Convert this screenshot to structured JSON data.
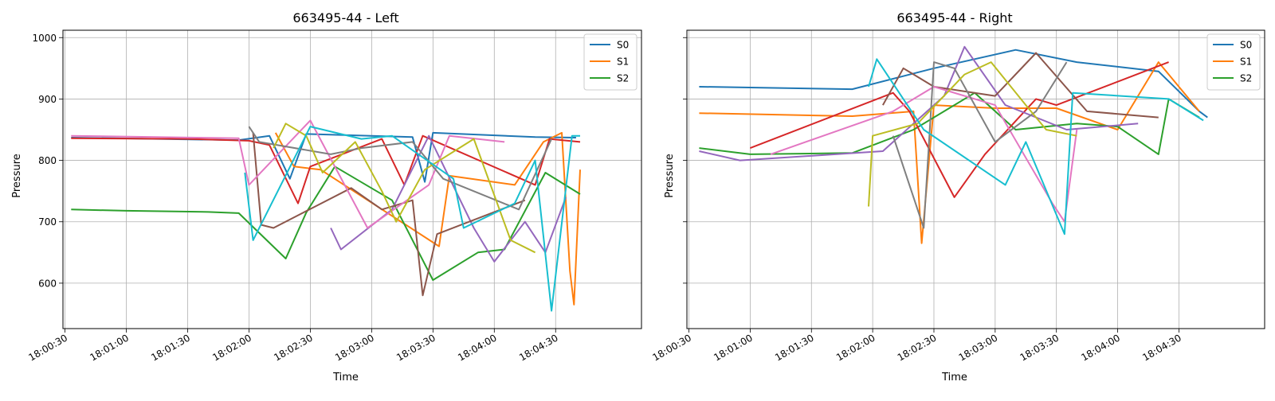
{
  "chart_data": [
    {
      "type": "line",
      "title": "663495-44 - Left",
      "xlabel": "Time",
      "ylabel": "Pressure",
      "x_range": [
        "18:00:29",
        "18:05:12"
      ],
      "ylim": [
        526,
        1012
      ],
      "x_ticks": [
        "18:00:30",
        "18:01:00",
        "18:01:30",
        "18:02:00",
        "18:02:30",
        "18:03:00",
        "18:03:30",
        "18:04:00",
        "18:04:30"
      ],
      "y_ticks": [
        600,
        700,
        800,
        900,
        1000
      ],
      "grid": true,
      "legend_position": "top-right",
      "legend": [
        {
          "label": "S0",
          "color": "#1f77b4"
        },
        {
          "label": "S1",
          "color": "#ff7f0e"
        },
        {
          "label": "S2",
          "color": "#2ca02c"
        }
      ],
      "series": [
        {
          "color": "#1f77b4",
          "points": [
            [
              "18:00:33",
              837
            ],
            [
              "18:01:55",
              833
            ],
            [
              "18:02:10",
              840
            ],
            [
              "18:02:20",
              770
            ],
            [
              "18:02:28",
              843
            ],
            [
              "18:03:20",
              838
            ],
            [
              "18:03:26",
              765
            ],
            [
              "18:03:30",
              845
            ],
            [
              "18:04:20",
              838
            ],
            [
              "18:04:40",
              837
            ]
          ]
        },
        {
          "color": "#ff7f0e",
          "points": [
            [
              "18:02:13",
              845
            ],
            [
              "18:02:22",
              790
            ],
            [
              "18:02:35",
              785
            ],
            [
              "18:03:33",
              660
            ],
            [
              "18:03:38",
              775
            ],
            [
              "18:04:10",
              760
            ],
            [
              "18:04:24",
              830
            ],
            [
              "18:04:33",
              845
            ],
            [
              "18:04:37",
              620
            ],
            [
              "18:04:39",
              565
            ],
            [
              "18:04:42",
              785
            ]
          ]
        },
        {
          "color": "#2ca02c",
          "points": [
            [
              "18:00:33",
              720
            ],
            [
              "18:01:00",
              718
            ],
            [
              "18:01:40",
              716
            ],
            [
              "18:01:55",
              714
            ],
            [
              "18:02:18",
              640
            ],
            [
              "18:02:28",
              715
            ],
            [
              "18:02:42",
              790
            ],
            [
              "18:03:10",
              735
            ],
            [
              "18:03:30",
              605
            ],
            [
              "18:03:52",
              650
            ],
            [
              "18:04:05",
              655
            ],
            [
              "18:04:25",
              780
            ],
            [
              "18:04:42",
              745
            ]
          ]
        },
        {
          "color": "#d62728",
          "points": [
            [
              "18:00:33",
              836
            ],
            [
              "18:01:30",
              835
            ],
            [
              "18:02:00",
              832
            ],
            [
              "18:02:10",
              825
            ],
            [
              "18:02:24",
              730
            ],
            [
              "18:02:30",
              790
            ],
            [
              "18:03:05",
              835
            ],
            [
              "18:03:16",
              760
            ],
            [
              "18:03:25",
              840
            ],
            [
              "18:04:20",
              760
            ],
            [
              "18:04:27",
              835
            ],
            [
              "18:04:42",
              830
            ]
          ]
        },
        {
          "color": "#9467bd",
          "points": [
            [
              "18:02:40",
              690
            ],
            [
              "18:02:45",
              655
            ],
            [
              "18:03:10",
              720
            ],
            [
              "18:03:28",
              840
            ],
            [
              "18:03:50",
              690
            ],
            [
              "18:04:00",
              635
            ],
            [
              "18:04:15",
              700
            ],
            [
              "18:04:25",
              650
            ],
            [
              "18:04:35",
              740
            ]
          ]
        },
        {
          "color": "#8c564b",
          "points": [
            [
              "18:02:02",
              845
            ],
            [
              "18:02:06",
              695
            ],
            [
              "18:02:12",
              690
            ],
            [
              "18:02:50",
              755
            ],
            [
              "18:03:05",
              720
            ],
            [
              "18:03:20",
              735
            ],
            [
              "18:03:25",
              580
            ],
            [
              "18:03:32",
              680
            ],
            [
              "18:04:15",
              735
            ]
          ]
        },
        {
          "color": "#e377c2",
          "points": [
            [
              "18:00:33",
              840
            ],
            [
              "18:01:55",
              836
            ],
            [
              "18:02:00",
              760
            ],
            [
              "18:02:30",
              865
            ],
            [
              "18:02:58",
              690
            ],
            [
              "18:03:28",
              760
            ],
            [
              "18:03:38",
              840
            ],
            [
              "18:04:05",
              830
            ]
          ]
        },
        {
          "color": "#7f7f7f",
          "points": [
            [
              "18:02:00",
              855
            ],
            [
              "18:02:05",
              830
            ],
            [
              "18:02:40",
              810
            ],
            [
              "18:02:55",
              820
            ],
            [
              "18:03:20",
              830
            ],
            [
              "18:03:35",
              770
            ],
            [
              "18:04:12",
              720
            ],
            [
              "18:04:28",
              835
            ]
          ]
        },
        {
          "color": "#bcbd22",
          "points": [
            [
              "18:02:12",
              820
            ],
            [
              "18:02:18",
              860
            ],
            [
              "18:02:28",
              840
            ],
            [
              "18:02:36",
              780
            ],
            [
              "18:02:52",
              830
            ],
            [
              "18:03:05",
              750
            ],
            [
              "18:03:12",
              700
            ],
            [
              "18:03:26",
              785
            ],
            [
              "18:03:50",
              835
            ],
            [
              "18:04:08",
              670
            ],
            [
              "18:04:20",
              650
            ]
          ]
        },
        {
          "color": "#17becf",
          "points": [
            [
              "18:01:58",
              780
            ],
            [
              "18:02:02",
              670
            ],
            [
              "18:02:30",
              855
            ],
            [
              "18:02:55",
              835
            ],
            [
              "18:03:10",
              840
            ],
            [
              "18:03:40",
              770
            ],
            [
              "18:03:45",
              690
            ],
            [
              "18:04:10",
              730
            ],
            [
              "18:04:20",
              800
            ],
            [
              "18:04:28",
              555
            ],
            [
              "18:04:38",
              840
            ],
            [
              "18:04:42",
              840
            ]
          ]
        }
      ]
    },
    {
      "type": "line",
      "title": "663495-44 - Right",
      "xlabel": "Time",
      "ylabel": "Pressure",
      "x_range": [
        "18:00:29",
        "18:05:12"
      ],
      "ylim": [
        526,
        1012
      ],
      "x_ticks": [
        "18:00:30",
        "18:01:00",
        "18:01:30",
        "18:02:00",
        "18:02:30",
        "18:03:00",
        "18:03:30",
        "18:04:00",
        "18:04:30"
      ],
      "y_ticks": [
        600,
        700,
        800,
        900,
        1000
      ],
      "grid": true,
      "legend_position": "top-right",
      "legend": [
        {
          "label": "S0",
          "color": "#1f77b4"
        },
        {
          "label": "S1",
          "color": "#ff7f0e"
        },
        {
          "label": "S2",
          "color": "#2ca02c"
        }
      ],
      "series": [
        {
          "color": "#1f77b4",
          "points": [
            [
              "18:00:35",
              920
            ],
            [
              "18:01:50",
              916
            ],
            [
              "18:02:30",
              950
            ],
            [
              "18:03:10",
              980
            ],
            [
              "18:03:40",
              960
            ],
            [
              "18:04:20",
              945
            ],
            [
              "18:04:40",
              880
            ],
            [
              "18:04:44",
              870
            ]
          ]
        },
        {
          "color": "#ff7f0e",
          "points": [
            [
              "18:00:35",
              877
            ],
            [
              "18:01:50",
              872
            ],
            [
              "18:02:20",
              880
            ],
            [
              "18:02:24",
              665
            ],
            [
              "18:02:30",
              890
            ],
            [
              "18:03:00",
              885
            ],
            [
              "18:03:30",
              885
            ],
            [
              "18:04:00",
              850
            ],
            [
              "18:04:20",
              960
            ],
            [
              "18:04:40",
              880
            ]
          ]
        },
        {
          "color": "#2ca02c",
          "points": [
            [
              "18:00:35",
              820
            ],
            [
              "18:01:00",
              810
            ],
            [
              "18:01:50",
              812
            ],
            [
              "18:02:20",
              850
            ],
            [
              "18:02:50",
              910
            ],
            [
              "18:03:10",
              850
            ],
            [
              "18:03:40",
              860
            ],
            [
              "18:04:00",
              855
            ],
            [
              "18:04:20",
              810
            ],
            [
              "18:04:25",
              900
            ],
            [
              "18:04:40",
              870
            ]
          ]
        },
        {
          "color": "#d62728",
          "points": [
            [
              "18:01:00",
              820
            ],
            [
              "18:02:10",
              910
            ],
            [
              "18:02:18",
              880
            ],
            [
              "18:02:40",
              740
            ],
            [
              "18:02:55",
              810
            ],
            [
              "18:03:20",
              900
            ],
            [
              "18:03:30",
              890
            ],
            [
              "18:04:25",
              960
            ]
          ]
        },
        {
          "color": "#9467bd",
          "points": [
            [
              "18:00:35",
              815
            ],
            [
              "18:00:55",
              800
            ],
            [
              "18:02:05",
              815
            ],
            [
              "18:02:35",
              905
            ],
            [
              "18:02:45",
              985
            ],
            [
              "18:03:05",
              890
            ],
            [
              "18:03:35",
              850
            ],
            [
              "18:04:10",
              860
            ]
          ]
        },
        {
          "color": "#8c564b",
          "points": [
            [
              "18:02:05",
              890
            ],
            [
              "18:02:15",
              950
            ],
            [
              "18:02:30",
              920
            ],
            [
              "18:03:00",
              905
            ],
            [
              "18:03:20",
              975
            ],
            [
              "18:03:45",
              880
            ],
            [
              "18:04:20",
              870
            ]
          ]
        },
        {
          "color": "#e377c2",
          "points": [
            [
              "18:01:10",
              810
            ],
            [
              "18:02:10",
              880
            ],
            [
              "18:02:30",
              920
            ],
            [
              "18:03:00",
              890
            ],
            [
              "18:03:28",
              730
            ],
            [
              "18:03:34",
              700
            ],
            [
              "18:03:40",
              850
            ]
          ]
        },
        {
          "color": "#7f7f7f",
          "points": [
            [
              "18:02:10",
              840
            ],
            [
              "18:02:25",
              690
            ],
            [
              "18:02:30",
              960
            ],
            [
              "18:02:40",
              950
            ],
            [
              "18:03:00",
              830
            ],
            [
              "18:03:20",
              880
            ],
            [
              "18:03:35",
              960
            ]
          ]
        },
        {
          "color": "#bcbd22",
          "points": [
            [
              "18:01:58",
              725
            ],
            [
              "18:02:00",
              840
            ],
            [
              "18:02:22",
              860
            ],
            [
              "18:02:45",
              940
            ],
            [
              "18:02:58",
              960
            ],
            [
              "18:03:15",
              890
            ],
            [
              "18:03:25",
              850
            ],
            [
              "18:03:40",
              840
            ]
          ]
        },
        {
          "color": "#17becf",
          "points": [
            [
              "18:01:58",
              920
            ],
            [
              "18:02:02",
              965
            ],
            [
              "18:02:25",
              850
            ],
            [
              "18:03:05",
              760
            ],
            [
              "18:03:15",
              830
            ],
            [
              "18:03:34",
              680
            ],
            [
              "18:03:38",
              910
            ],
            [
              "18:04:25",
              900
            ],
            [
              "18:04:42",
              865
            ]
          ]
        }
      ]
    }
  ]
}
